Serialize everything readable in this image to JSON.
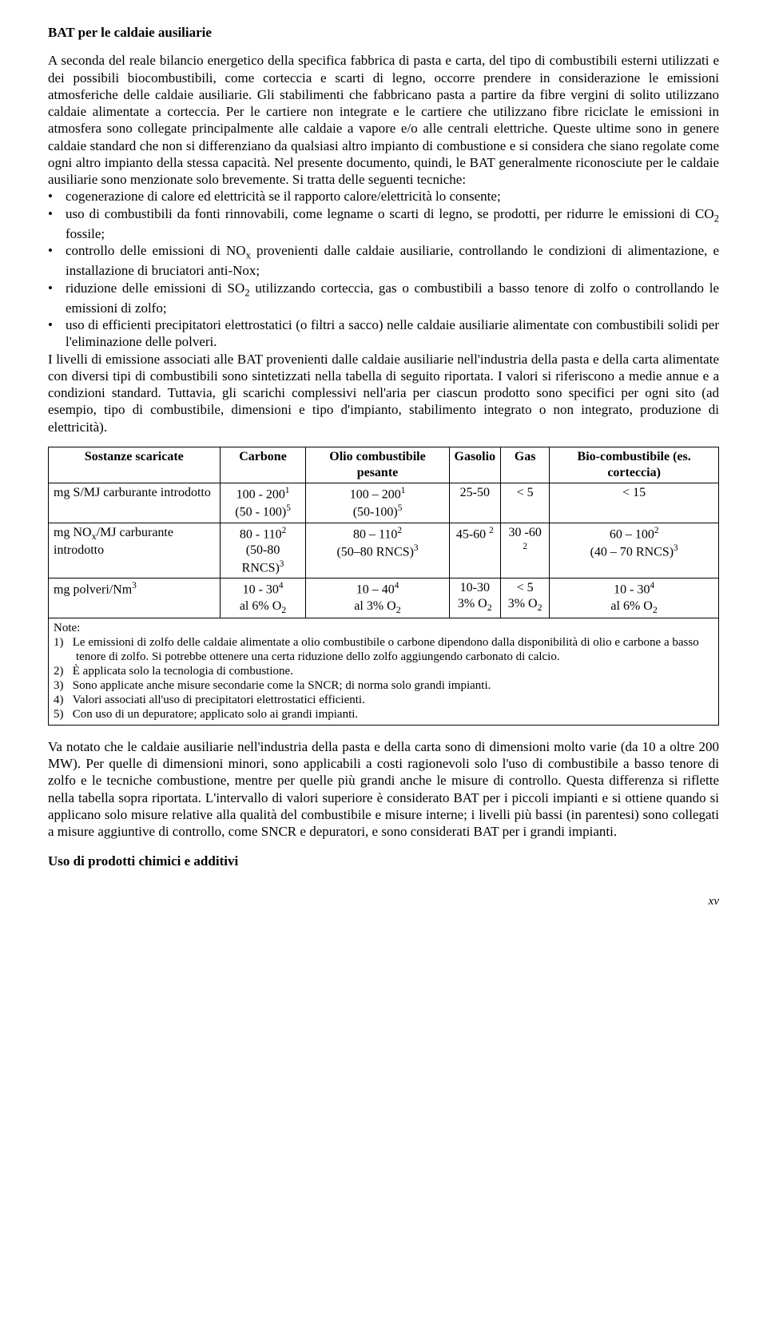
{
  "title": "BAT per le caldaie ausiliarie",
  "para1_a": "A seconda del reale bilancio energetico della specifica fabbrica di pasta e carta, del tipo di combustibili esterni utilizzati e dei possibili biocombustibili, come corteccia e scarti di legno, occorre prendere in considerazione le emissioni atmosferiche delle caldaie ausiliarie. Gli stabilimenti che fabbricano pasta a partire da fibre vergini di solito utilizzano caldaie alimentate a corteccia. Per le cartiere non integrate e le cartiere che utilizzano fibre riciclate le emissioni in atmosfera sono collegate principalmente alle caldaie a vapore e/o alle centrali elettriche. Queste ultime sono in genere caldaie standard che non si differenziano da qualsiasi altro impianto di combustione e si considera che siano regolate come ogni altro impianto della stessa capacità. Nel presente documento, quindi, le BAT generalmente riconosciute per le caldaie ausiliarie sono menzionate solo brevemente. Si tratta delle seguenti tecniche:",
  "bullets": {
    "b1": "cogenerazione di calore ed elettricità se il rapporto calore/elettricità lo consente;",
    "b2a": "uso di combustibili da fonti rinnovabili, come legname o scarti di legno, se prodotti, per ridurre le emissioni di CO",
    "b2b": " fossile;",
    "b3a": "controllo delle emissioni di NO",
    "b3b": " provenienti dalle caldaie ausiliarie, controllando le condizioni di alimentazione, e installazione di bruciatori anti-Nox;",
    "b4a": "riduzione delle emissioni di SO",
    "b4b": " utilizzando corteccia, gas o combustibili a basso tenore di zolfo o controllando le emissioni di zolfo;",
    "b5": "uso di efficienti precipitatori elettrostatici (o filtri a sacco) nelle caldaie ausiliarie alimentate con combustibili solidi per l'eliminazione delle polveri."
  },
  "para2": "I livelli di emissione associati alle BAT provenienti dalle caldaie ausiliarie nell'industria della pasta e della carta alimentate con diversi tipi di combustibili sono sintetizzati nella tabella di seguito riportata. I valori si riferiscono a medie annue e a condizioni standard. Tuttavia, gli scarichi complessivi nell'aria per ciascun prodotto sono specifici per ogni sito (ad esempio, tipo di combustibile, dimensioni e tipo d'impianto, stabilimento integrato o non integrato, produzione di elettricità).",
  "table": {
    "headers": {
      "c0": "Sostanze scaricate",
      "c1": "Carbone",
      "c2": "Olio combustibile pesante",
      "c3": "Gasolio",
      "c4": "Gas",
      "c5": "Bio-combustibile (es. corteccia)"
    },
    "rows": {
      "r1_label": "mg S/MJ carburante introdotto",
      "r2_label_a": "mg NO",
      "r2_label_b": "/MJ carburante introdotto",
      "r3_label_a": "mg polveri/Nm"
    },
    "cells": {
      "r1c1a": "100 - 200",
      "r1c1b": "(50 - 100)",
      "r1c2a": "100 – 200",
      "r1c2b": "(50-100)",
      "r1c3": "25-50",
      "r1c4": "< 5",
      "r1c5": "< 15",
      "r2c1a": "80 - 110",
      "r2c1b": "(50-80 RNCS)",
      "r2c2a": "80 – 110",
      "r2c2b": "(50–80 RNCS)",
      "r2c3": "45-60 ",
      "r2c4": "30 -60 ",
      "r2c5a": "60 – 100",
      "r2c5b": "(40 – 70 RNCS)",
      "r3c1a": "10 - 30",
      "r3c1b": "al 6% O",
      "r3c2a": "10 – 40",
      "r3c2b": "al 3% O",
      "r3c3a": "10-30",
      "r3c3b": "3% O",
      "r3c4a": "< 5",
      "r3c4b": "3% O",
      "r3c5a": "10 - 30",
      "r3c5b": "al 6% O"
    }
  },
  "notes": {
    "title": "Note:",
    "n1a": "1)",
    "n1b": "Le emissioni di zolfo delle caldaie alimentate a olio combustibile o carbone dipendono dalla disponibilità di olio e carbone a basso tenore di zolfo. Si potrebbe ottenere una certa riduzione dello zolfo aggiungendo carbonato di calcio.",
    "n2a": "2)",
    "n2b": "È applicata solo la tecnologia di combustione.",
    "n3a": "3)",
    "n3b": "Sono applicate anche misure secondarie come la SNCR; di norma solo grandi impianti.",
    "n4a": "4)",
    "n4b": "Valori associati all'uso di precipitatori elettrostatici efficienti.",
    "n5a": "5)",
    "n5b": "Con uso di un depuratore; applicato solo ai grandi impianti."
  },
  "closing": "Va notato che le caldaie ausiliarie nell'industria della pasta e della carta sono di dimensioni molto varie (da 10 a oltre 200 MW). Per quelle di dimensioni minori, sono applicabili a costi ragionevoli solo l'uso di combustibile a basso tenore di zolfo e le tecniche combustione, mentre per quelle più grandi anche le misure di controllo. Questa differenza si riflette nella tabella sopra riportata. L'intervallo di valori superiore è considerato BAT per i piccoli impianti e si ottiene quando si applicano solo misure relative alla qualità del combustibile e misure interne; i livelli più bassi (in parentesi) sono collegati a misure aggiuntive di controllo, come SNCR e depuratori, e sono considerati BAT per i grandi impianti.",
  "final_heading": "Uso di prodotti chimici e additivi",
  "page_number": "xv"
}
